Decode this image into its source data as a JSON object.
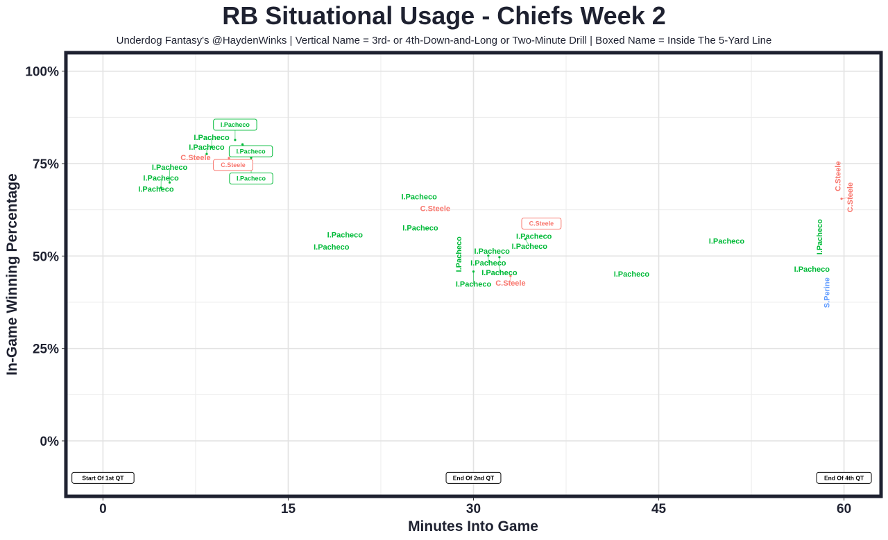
{
  "chart_data": {
    "type": "scatter",
    "title": "RB Situational Usage - Chiefs Week 2",
    "subtitle": "Underdog Fantasy's @HaydenWinks | Vertical Name = 3rd- or 4th-Down-and-Long or Two-Minute Drill | Boxed Name = Inside The 5-Yard Line",
    "xlabel": "Minutes Into Game",
    "ylabel": "In-Game Winning Percentage",
    "xlim": [
      -3,
      63
    ],
    "ylim": [
      -15,
      105
    ],
    "xticks": [
      0,
      15,
      30,
      45,
      60
    ],
    "xtick_labels": [
      "0",
      "15",
      "30",
      "45",
      "60"
    ],
    "yticks": [
      0,
      25,
      50,
      75,
      100
    ],
    "ytick_labels": [
      "0%",
      "25%",
      "50%",
      "75%",
      "100%"
    ],
    "grid": true,
    "colors": {
      "I.Pacheco": "#00BA38",
      "C.Steele": "#F8766D",
      "S.Perine": "#619CFF"
    },
    "points": [
      {
        "player": "I.Pacheco",
        "x": 4.3,
        "y": 67.8,
        "style": "normal"
      },
      {
        "player": "I.Pacheco",
        "x": 4.7,
        "y": 68.5,
        "style": "normal"
      },
      {
        "player": "I.Pacheco",
        "x": 5.4,
        "y": 69.9,
        "style": "normal"
      },
      {
        "player": "C.Steele",
        "x": 7.5,
        "y": 76.3,
        "style": "normal"
      },
      {
        "player": "I.Pacheco",
        "x": 8.4,
        "y": 77.6,
        "style": "normal"
      },
      {
        "player": "I.Pacheco",
        "x": 8.8,
        "y": 79.5,
        "style": "normal"
      },
      {
        "player": "I.Pacheco",
        "x": 10.7,
        "y": 81.4,
        "style": "boxed"
      },
      {
        "player": "I.Pacheco",
        "x": 11.3,
        "y": 80.2,
        "style": "boxed"
      },
      {
        "player": "C.Steele",
        "x": 10.2,
        "y": 76.5,
        "style": "boxed"
      },
      {
        "player": "I.Pacheco",
        "x": 12.0,
        "y": 76.6,
        "style": "boxed"
      },
      {
        "player": "I.Pacheco",
        "x": 19.6,
        "y": 55.4,
        "style": "normal"
      },
      {
        "player": "I.Pacheco",
        "x": 18.5,
        "y": 52.9,
        "style": "normal"
      },
      {
        "player": "I.Pacheco",
        "x": 25.6,
        "y": 65.7,
        "style": "normal"
      },
      {
        "player": "C.Steele",
        "x": 26.9,
        "y": 63.3,
        "style": "normal"
      },
      {
        "player": "I.Pacheco",
        "x": 25.7,
        "y": 57.3,
        "style": "normal"
      },
      {
        "player": "I.Pacheco",
        "x": 28.8,
        "y": 50.1,
        "style": "vertical"
      },
      {
        "player": "I.Pacheco",
        "x": 31.5,
        "y": 51.0,
        "style": "normal"
      },
      {
        "player": "I.Pacheco",
        "x": 31.2,
        "y": 50.1,
        "style": "normal"
      },
      {
        "player": "I.Pacheco",
        "x": 32.1,
        "y": 49.7,
        "style": "normal"
      },
      {
        "player": "I.Pacheco",
        "x": 30.0,
        "y": 45.8,
        "style": "normal"
      },
      {
        "player": "C.Steele",
        "x": 33.0,
        "y": 44.6,
        "style": "normal"
      },
      {
        "player": "C.Steele",
        "x": 35.5,
        "y": 58.4,
        "style": "boxed"
      },
      {
        "player": "I.Pacheco",
        "x": 34.9,
        "y": 56.5,
        "style": "normal"
      },
      {
        "player": "I.Pacheco",
        "x": 34.2,
        "y": 54.6,
        "style": "normal"
      },
      {
        "player": "I.Pacheco",
        "x": 50.5,
        "y": 53.7,
        "style": "normal"
      },
      {
        "player": "I.Pacheco",
        "x": 42.8,
        "y": 44.8,
        "style": "normal"
      },
      {
        "player": "I.Pacheco",
        "x": 58.0,
        "y": 54.8,
        "style": "vertical"
      },
      {
        "player": "I.Pacheco",
        "x": 57.4,
        "y": 46.1,
        "style": "normal"
      },
      {
        "player": "S.Perine",
        "x": 58.6,
        "y": 41.2,
        "style": "vertical"
      },
      {
        "player": "C.Steele",
        "x": 59.5,
        "y": 71.2,
        "style": "vertical"
      },
      {
        "player": "C.Steele",
        "x": 59.8,
        "y": 65.5,
        "style": "vertical"
      }
    ],
    "annotations": [
      {
        "text": "Start Of 1st QT",
        "x": 0,
        "y": -10
      },
      {
        "text": "End Of 2nd QT",
        "x": 30,
        "y": -10
      },
      {
        "text": "End Of 4th QT",
        "x": 60,
        "y": -10
      }
    ]
  }
}
